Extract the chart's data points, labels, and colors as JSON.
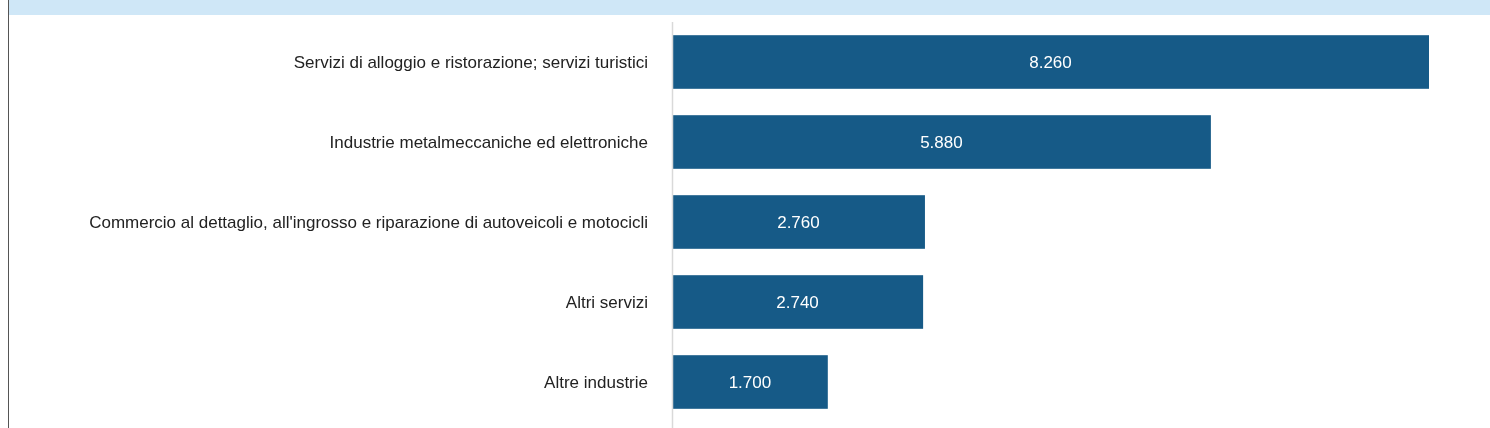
{
  "chart_data": {
    "type": "bar",
    "orientation": "horizontal",
    "categories": [
      "Servizi di alloggio e ristorazione; servizi turistici",
      "Industrie metalmeccaniche ed elettroniche",
      "Commercio al dettaglio, all'ingrosso e riparazione di autoveicoli e motocicli",
      "Altri servizi",
      "Altre industrie"
    ],
    "values": [
      8260,
      5880,
      2760,
      2740,
      1700
    ],
    "value_labels": [
      "8.260",
      "5.880",
      "2.760",
      "2.740",
      "1.700"
    ],
    "color": "#165a87",
    "tick_labels": "y"
  }
}
